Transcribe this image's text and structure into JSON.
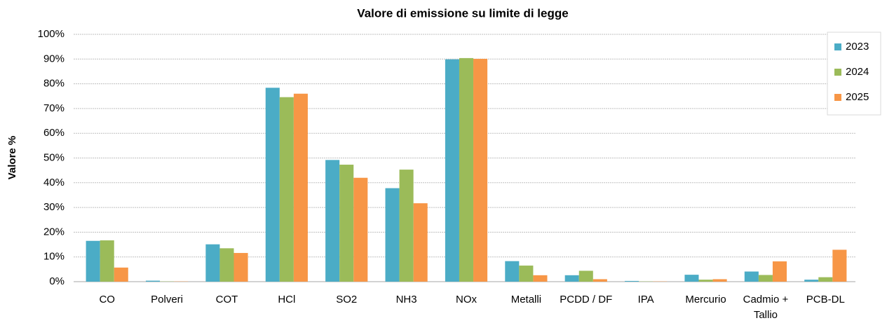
{
  "chart_data": {
    "type": "bar",
    "title": "Valore di emissione su limite di legge",
    "y_label": "Valore %",
    "categories": [
      "CO",
      "Polveri",
      "COT",
      "HCl",
      "SO2",
      "NH3",
      "NOx",
      "Metalli",
      "PCDD / DF",
      "IPA",
      "Mercurio",
      "Cadmio + Tallio",
      "PCB-DL"
    ],
    "series": [
      {
        "name": "2023",
        "color": "#4bacc6",
        "values": [
          16.5,
          0.4,
          15.1,
          78.4,
          49.2,
          37.8,
          89.9,
          8.3,
          2.6,
          0.3,
          2.8,
          4.1,
          0.8
        ]
      },
      {
        "name": "2024",
        "color": "#9bbb59",
        "values": [
          16.7,
          0.1,
          13.5,
          74.6,
          47.3,
          45.3,
          90.4,
          6.5,
          4.4,
          0.1,
          0.8,
          2.7,
          1.8
        ]
      },
      {
        "name": "2025",
        "color": "#f79646",
        "values": [
          5.7,
          0.1,
          11.6,
          76.0,
          42.0,
          31.7,
          90.1,
          2.6,
          1.0,
          0.1,
          1.0,
          8.2,
          12.9
        ]
      }
    ],
    "ylim": [
      0,
      100
    ],
    "yticks": [
      {
        "value": 0,
        "label": "0%"
      },
      {
        "value": 10,
        "label": "10%"
      },
      {
        "value": 20,
        "label": "20%"
      },
      {
        "value": 30,
        "label": "30%"
      },
      {
        "value": 40,
        "label": "40%"
      },
      {
        "value": 50,
        "label": "50%"
      },
      {
        "value": 60,
        "label": "60%"
      },
      {
        "value": 70,
        "label": "70%"
      },
      {
        "value": 80,
        "label": "80%"
      },
      {
        "value": 90,
        "label": "90%"
      },
      {
        "value": 100,
        "label": "100%"
      }
    ],
    "grid": true,
    "legend": "upper right"
  }
}
